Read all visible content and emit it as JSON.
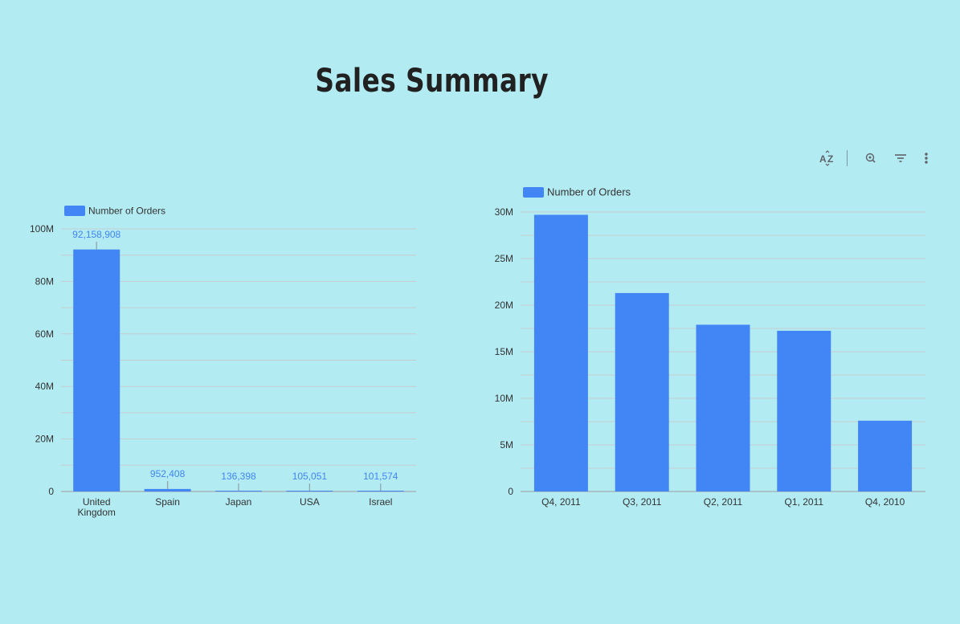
{
  "page": {
    "title": "Sales Summary"
  },
  "toolbar": {
    "icons": [
      "sort-az-icon",
      "zoom-icon",
      "filter-icon",
      "more-vert-icon"
    ]
  },
  "colors": {
    "background": "#b2ebf2",
    "bar": "#4285f4",
    "label": "#4285f4",
    "grid": "#c5ccd0",
    "text": "#333333"
  },
  "chart_data": [
    {
      "type": "bar",
      "legend": "Number of Orders",
      "legend_position": "top-left",
      "categories": [
        "United Kingdom",
        "Spain",
        "Japan",
        "USA",
        "Israel"
      ],
      "category_lines": [
        [
          "United",
          "Kingdom"
        ],
        [
          "Spain"
        ],
        [
          "Japan"
        ],
        [
          "USA"
        ],
        [
          "Israel"
        ]
      ],
      "values": [
        92158908,
        952408,
        136398,
        105051,
        101574
      ],
      "data_labels": [
        "92,158,908",
        "952,408",
        "136,398",
        "105,051",
        "101,574"
      ],
      "ylim": [
        0,
        100000000
      ],
      "y_ticks": [
        0,
        20000000,
        40000000,
        60000000,
        80000000,
        100000000
      ],
      "y_tick_labels": [
        "0",
        "20M",
        "40M",
        "60M",
        "80M",
        "100M"
      ],
      "grid": true
    },
    {
      "type": "bar",
      "legend": "Number of Orders",
      "legend_position": "top-left",
      "categories": [
        "Q4, 2011",
        "Q3, 2011",
        "Q2, 2011",
        "Q1, 2011",
        "Q4, 2010"
      ],
      "values": [
        29700000,
        21300000,
        17900000,
        17250000,
        7600000
      ],
      "ylim": [
        0,
        30000000
      ],
      "y_ticks": [
        0,
        5000000,
        10000000,
        15000000,
        20000000,
        25000000,
        30000000
      ],
      "y_tick_labels": [
        "0",
        "5M",
        "10M",
        "15M",
        "20M",
        "25M",
        "30M"
      ],
      "grid": true
    }
  ]
}
